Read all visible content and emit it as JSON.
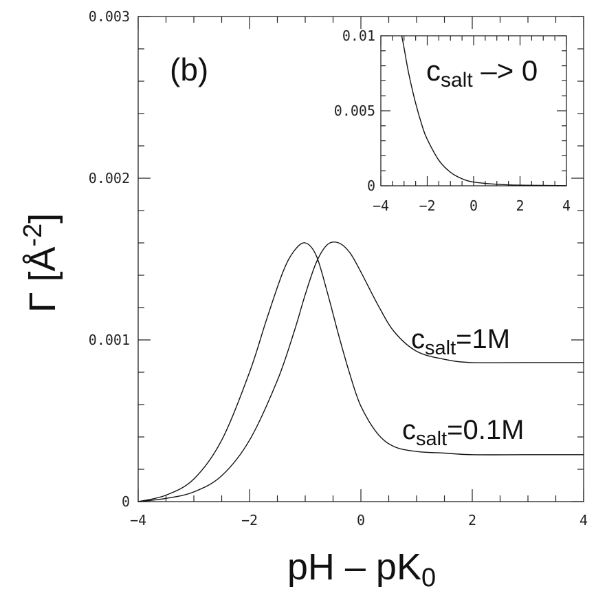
{
  "chart_data": [
    {
      "type": "line",
      "panel_label": "(b)",
      "xlabel": {
        "main": "pH – pK",
        "sub": "0"
      },
      "ylabel": {
        "main": "Γ [Å",
        "sup": "-2",
        "end": "]"
      },
      "xlim": [
        -4,
        4
      ],
      "ylim": [
        0,
        0.003
      ],
      "x_ticks": [
        "−4",
        "−2",
        "0",
        "2",
        "4"
      ],
      "y_ticks": [
        "0",
        "0.001",
        "0.002",
        "0.003"
      ],
      "series": [
        {
          "name": "c_salt=1M",
          "label": {
            "pre": "c",
            "sub": "salt",
            "post": "=1M"
          },
          "x": [
            -4,
            -3.5,
            -3,
            -2.5,
            -2,
            -1.5,
            -1.2,
            -1,
            -0.8,
            -0.6,
            -0.4,
            -0.2,
            0,
            0.3,
            0.6,
            1,
            1.5,
            2,
            3,
            4
          ],
          "y": [
            0,
            2e-05,
            6e-05,
            0.00016,
            0.00038,
            0.00075,
            0.00105,
            0.00128,
            0.00148,
            0.00159,
            0.0016,
            0.00154,
            0.00142,
            0.00122,
            0.00105,
            0.00093,
            0.00088,
            0.00086,
            0.00086,
            0.00086
          ]
        },
        {
          "name": "c_salt=0.1M",
          "label": {
            "pre": "c",
            "sub": "salt",
            "post": "=0.1M"
          },
          "x": [
            -4,
            -3.5,
            -3,
            -2.5,
            -2,
            -1.7,
            -1.4,
            -1.2,
            -1,
            -0.8,
            -0.6,
            -0.4,
            -0.2,
            0,
            0.3,
            0.6,
            1,
            1.5,
            2,
            3,
            4
          ],
          "y": [
            0,
            4e-05,
            0.00014,
            0.00038,
            0.0008,
            0.00112,
            0.00142,
            0.00155,
            0.0016,
            0.00152,
            0.00129,
            0.00103,
            0.00079,
            0.00059,
            0.00042,
            0.00034,
            0.00031,
            0.0003,
            0.00029,
            0.00029,
            0.00029
          ]
        }
      ]
    },
    {
      "type": "line",
      "title": {
        "pre": "c",
        "sub": "salt",
        "post": " –> 0"
      },
      "xlim": [
        -4,
        4
      ],
      "ylim": [
        0,
        0.01
      ],
      "x_ticks": [
        "−4",
        "−2",
        "0",
        "2",
        "4"
      ],
      "y_ticks": [
        "0",
        "0.005",
        "0.01"
      ],
      "series": [
        {
          "x": [
            -3.1,
            -3,
            -2.8,
            -2.5,
            -2.2,
            -2,
            -1.5,
            -1,
            -0.5,
            0,
            1,
            2,
            4
          ],
          "y": [
            0.01,
            0.0092,
            0.0075,
            0.0055,
            0.0039,
            0.0031,
            0.0017,
            0.0009,
            0.00047,
            0.00025,
            0.0001,
            4e-05,
            1e-05
          ]
        }
      ]
    }
  ]
}
